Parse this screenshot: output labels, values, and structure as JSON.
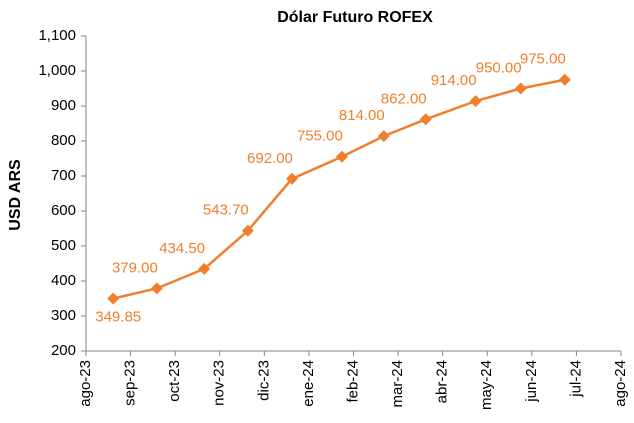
{
  "chart_data": {
    "type": "line",
    "title": "Dólar Futuro ROFEX",
    "y_label": "USD ARS",
    "x": [
      0.61,
      1.59,
      2.65,
      3.63,
      4.62,
      5.74,
      6.68,
      7.62,
      8.74,
      9.75,
      10.74
    ],
    "xlim": [
      0,
      12
    ],
    "xticks": [
      {
        "value": 0,
        "label": "ago-23"
      },
      {
        "value": 1,
        "label": "sep-23"
      },
      {
        "value": 2,
        "label": "oct-23"
      },
      {
        "value": 3,
        "label": "nov-23"
      },
      {
        "value": 4,
        "label": "dic-23"
      },
      {
        "value": 5,
        "label": "ene-24"
      },
      {
        "value": 6,
        "label": "feb-24"
      },
      {
        "value": 7,
        "label": "mar-24"
      },
      {
        "value": 8,
        "label": "abr-24"
      },
      {
        "value": 9,
        "label": "may-24"
      },
      {
        "value": 10,
        "label": "jun-24"
      },
      {
        "value": 11,
        "label": "jul-24"
      },
      {
        "value": 12,
        "label": "ago-24"
      }
    ],
    "series": [
      {
        "color": "#f07f2d",
        "values": [
          349.85,
          379,
          434.5,
          543.7,
          692,
          755,
          814,
          862,
          914,
          950,
          975
        ],
        "value_labels": [
          "349.85",
          "379.00",
          "434.50",
          "543.70",
          "692.00",
          "755.00",
          "814.00",
          "862.00",
          "914.00",
          "950.00",
          "975.00"
        ]
      }
    ],
    "ylim": [
      200,
      1100
    ],
    "yticks": [
      200,
      300,
      400,
      500,
      600,
      700,
      800,
      900,
      {
        "value": 1000,
        "label": "1,000"
      },
      {
        "value": 1100,
        "label": "1,100"
      }
    ],
    "grid": false
  }
}
